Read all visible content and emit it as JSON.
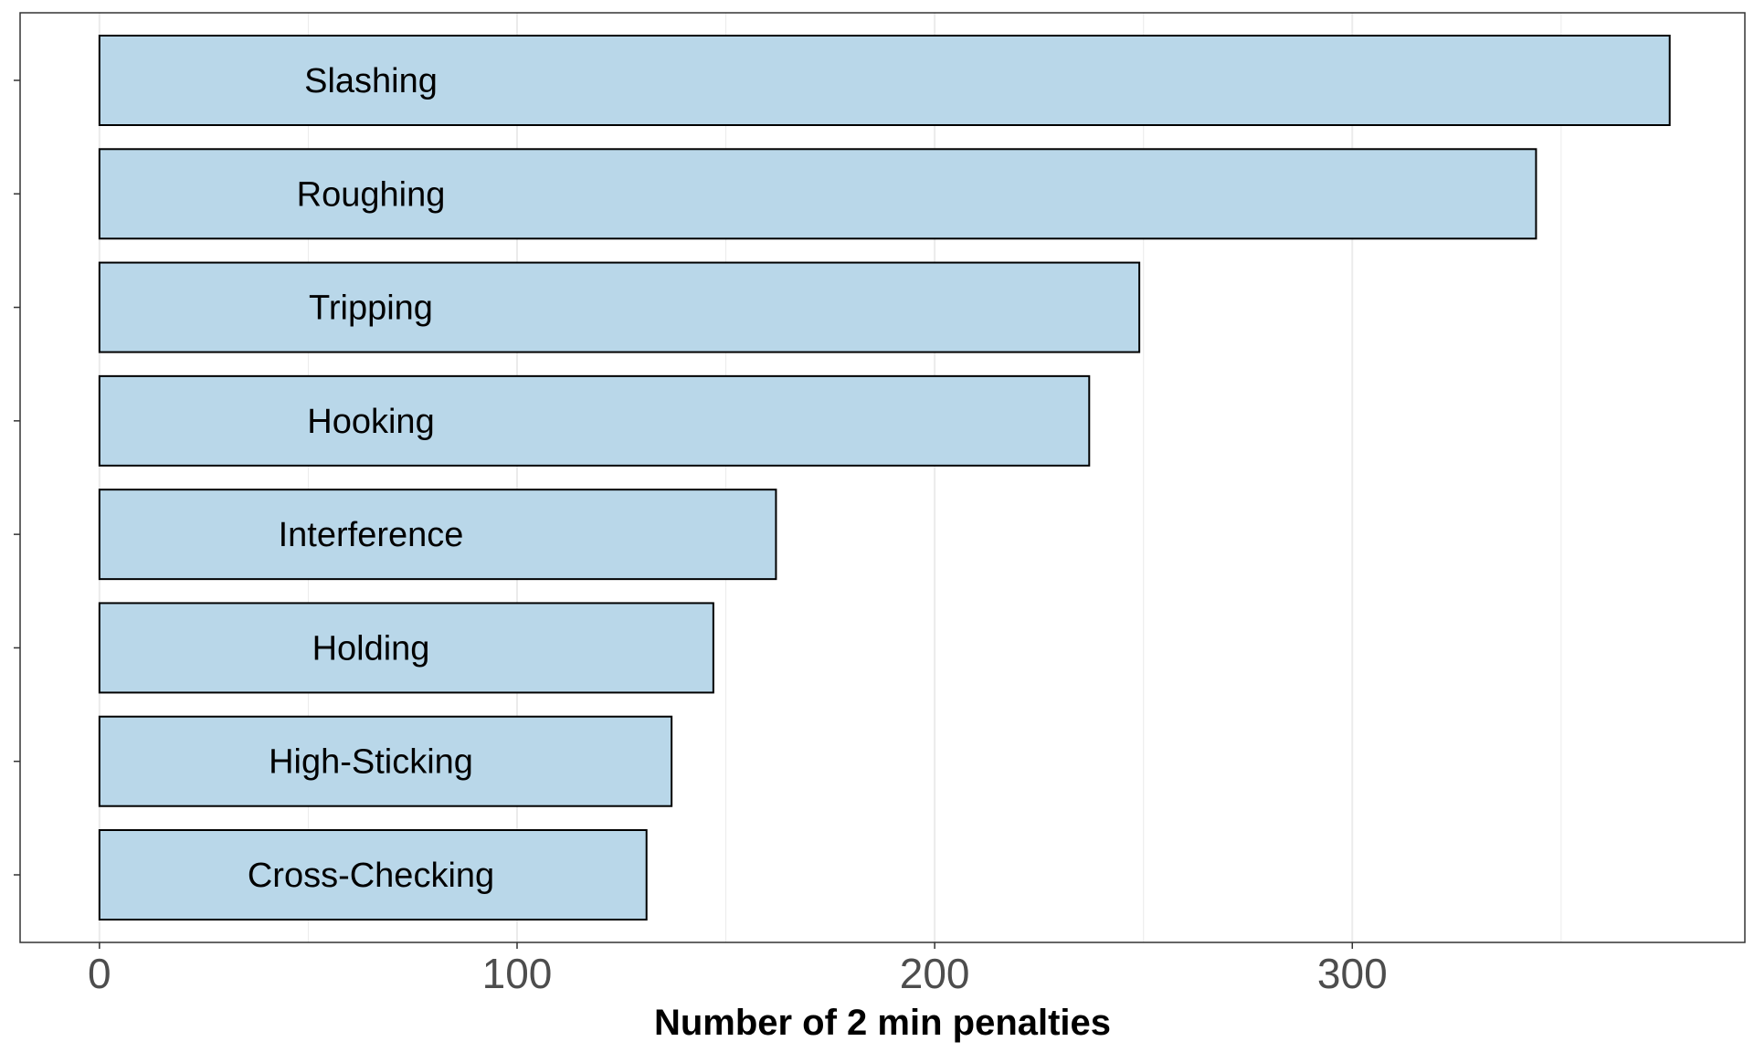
{
  "chart_data": {
    "type": "bar",
    "orientation": "horizontal",
    "categories": [
      "Slashing",
      "Roughing",
      "Tripping",
      "Hooking",
      "Interference",
      "Holding",
      "High-Sticking",
      "Cross-Checking"
    ],
    "values": [
      376,
      344,
      249,
      237,
      162,
      147,
      137,
      131
    ],
    "title": "",
    "xlabel": "Number of 2 min penalties",
    "ylabel": "",
    "xlim": [
      -19,
      394
    ],
    "xticks": [
      "0",
      "100",
      "200",
      "300"
    ],
    "grid": true,
    "legend": "none",
    "colors": {
      "bar_fill": "#b9d7e9",
      "bar_stroke": "#000000",
      "grid_line": "#ebebeb",
      "panel_border": "#333333",
      "tick_text": "#4d4d4d"
    }
  }
}
